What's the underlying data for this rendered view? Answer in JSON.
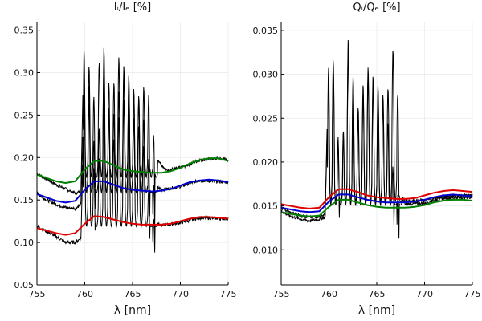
{
  "chart_data": [
    {
      "type": "line",
      "title": "Iᵢ/Iₑ [%]",
      "xlabel": "λ [nm]",
      "ylabel": "",
      "xlim": [
        755,
        775
      ],
      "ylim": [
        0.05,
        0.36
      ],
      "xticks": [
        "755",
        "760",
        "765",
        "770",
        "775"
      ],
      "yticks": [
        "0.05",
        "0.10",
        "0.15",
        "0.20",
        "0.25",
        "0.30",
        "0.35"
      ],
      "grid": true,
      "legend": "none",
      "series": [
        {
          "color": "#000000",
          "style": "noisy-absorption",
          "x": [
            755,
            756,
            757,
            758,
            759,
            759.6,
            759.9,
            760.2,
            760.8,
            761.2,
            761.6,
            762.5,
            763.5,
            764.5,
            765.5,
            766.5,
            767.5,
            768.5,
            770,
            772,
            774,
            775
          ],
          "y": [
            0.181,
            0.175,
            0.168,
            0.163,
            0.158,
            0.16,
            0.33,
            0.3,
            0.32,
            0.2,
            0.35,
            0.25,
            0.32,
            0.3,
            0.27,
            0.29,
            0.2,
            0.185,
            0.188,
            0.197,
            0.199,
            0.197
          ]
        },
        {
          "color": "#000000",
          "style": "noisy-absorption",
          "x": [
            755,
            756,
            757,
            758,
            759,
            759.6,
            760,
            760.6,
            761.2,
            762,
            763,
            764,
            765,
            766,
            767,
            768,
            770,
            772,
            775
          ],
          "y": [
            0.158,
            0.15,
            0.145,
            0.141,
            0.14,
            0.145,
            0.3,
            0.28,
            0.18,
            0.33,
            0.25,
            0.3,
            0.28,
            0.26,
            0.17,
            0.162,
            0.166,
            0.173,
            0.171
          ]
        },
        {
          "color": "#000000",
          "style": "noisy-absorption",
          "x": [
            755,
            756,
            757,
            758,
            759,
            759.6,
            760,
            760.6,
            761.2,
            762,
            763,
            764,
            765,
            766,
            767,
            768,
            770,
            772,
            775
          ],
          "y": [
            0.119,
            0.113,
            0.107,
            0.1,
            0.1,
            0.105,
            0.28,
            0.26,
            0.14,
            0.3,
            0.22,
            0.27,
            0.25,
            0.23,
            0.13,
            0.12,
            0.123,
            0.129,
            0.128
          ]
        },
        {
          "color": "#008000",
          "x": [
            755,
            756,
            757,
            758,
            759,
            760,
            761,
            762,
            763,
            764,
            765,
            766,
            767,
            768,
            769,
            770,
            771,
            772,
            773,
            774,
            775
          ],
          "y": [
            0.18,
            0.176,
            0.172,
            0.17,
            0.172,
            0.186,
            0.196,
            0.196,
            0.191,
            0.186,
            0.184,
            0.183,
            0.182,
            0.182,
            0.184,
            0.188,
            0.193,
            0.197,
            0.199,
            0.199,
            0.196
          ]
        },
        {
          "color": "#0000cc",
          "x": [
            755,
            756,
            757,
            758,
            759,
            760,
            761,
            762,
            763,
            764,
            765,
            766,
            767,
            768,
            769,
            770,
            771,
            772,
            773,
            774,
            775
          ],
          "y": [
            0.157,
            0.153,
            0.149,
            0.147,
            0.149,
            0.162,
            0.172,
            0.172,
            0.168,
            0.164,
            0.162,
            0.161,
            0.16,
            0.161,
            0.163,
            0.167,
            0.171,
            0.173,
            0.174,
            0.173,
            0.171
          ]
        },
        {
          "color": "#e00000",
          "x": [
            755,
            756,
            757,
            758,
            759,
            760,
            761,
            762,
            763,
            764,
            765,
            766,
            767,
            768,
            769,
            770,
            771,
            772,
            773,
            774,
            775
          ],
          "y": [
            0.117,
            0.114,
            0.111,
            0.109,
            0.111,
            0.122,
            0.131,
            0.13,
            0.127,
            0.124,
            0.122,
            0.121,
            0.121,
            0.121,
            0.122,
            0.125,
            0.128,
            0.13,
            0.13,
            0.129,
            0.128
          ]
        }
      ]
    },
    {
      "type": "line",
      "title": "Qᵢ/Qₑ [%]",
      "xlabel": "λ [nm]",
      "ylabel": "",
      "xlim": [
        755,
        775
      ],
      "ylim": [
        0.006,
        0.036
      ],
      "xticks": [
        "755",
        "760",
        "765",
        "770",
        "775"
      ],
      "yticks": [
        "0.010",
        "0.015",
        "0.020",
        "0.025",
        "0.030",
        "0.035"
      ],
      "grid": true,
      "legend": "none",
      "series": [
        {
          "color": "#000000",
          "style": "noisy-absorption",
          "x": [
            755,
            756,
            757,
            758,
            759,
            759.6,
            760,
            760.6,
            761.2,
            762,
            763,
            764,
            765,
            766,
            767,
            767.5,
            768,
            770,
            772,
            775
          ],
          "y": [
            0.0148,
            0.0142,
            0.0139,
            0.0137,
            0.0138,
            0.014,
            0.0335,
            0.031,
            0.0175,
            0.034,
            0.026,
            0.031,
            0.029,
            0.027,
            0.0355,
            0.016,
            0.0152,
            0.0153,
            0.0159,
            0.016
          ]
        },
        {
          "color": "#000000",
          "style": "noisy-absorption",
          "x": [
            755,
            756,
            757,
            758,
            759,
            759.6,
            760,
            760.6,
            761.2,
            762,
            763,
            764,
            765,
            766,
            767,
            768,
            770,
            772,
            775
          ],
          "y": [
            0.0144,
            0.0138,
            0.0135,
            0.0133,
            0.0135,
            0.0137,
            0.032,
            0.03,
            0.017,
            0.033,
            0.025,
            0.03,
            0.028,
            0.026,
            0.0165,
            0.0156,
            0.0156,
            0.0161,
            0.0162
          ]
        },
        {
          "color": "#008000",
          "x": [
            755,
            756,
            757,
            758,
            759,
            760,
            761,
            762,
            763,
            764,
            765,
            766,
            767,
            768,
            769,
            770,
            771,
            772,
            773,
            774,
            775
          ],
          "y": [
            0.0143,
            0.0141,
            0.0139,
            0.0138,
            0.0139,
            0.0149,
            0.0157,
            0.0157,
            0.0154,
            0.0151,
            0.0149,
            0.0148,
            0.0148,
            0.0148,
            0.0149,
            0.0151,
            0.0154,
            0.0156,
            0.0157,
            0.0157,
            0.0156
          ]
        },
        {
          "color": "#0000cc",
          "x": [
            755,
            756,
            757,
            758,
            759,
            760,
            761,
            762,
            763,
            764,
            765,
            766,
            767,
            768,
            769,
            770,
            771,
            772,
            773,
            774,
            775
          ],
          "y": [
            0.0148,
            0.0146,
            0.0144,
            0.0143,
            0.0144,
            0.0155,
            0.0163,
            0.0163,
            0.016,
            0.0157,
            0.0155,
            0.0154,
            0.0154,
            0.0154,
            0.0155,
            0.0157,
            0.016,
            0.0162,
            0.0163,
            0.0162,
            0.0161
          ]
        },
        {
          "color": "#e00000",
          "x": [
            755,
            756,
            757,
            758,
            759,
            760,
            761,
            762,
            763,
            764,
            765,
            766,
            767,
            768,
            769,
            770,
            771,
            772,
            773,
            774,
            775
          ],
          "y": [
            0.0152,
            0.015,
            0.0148,
            0.0147,
            0.0148,
            0.016,
            0.0169,
            0.0169,
            0.0166,
            0.0162,
            0.016,
            0.0159,
            0.0158,
            0.0158,
            0.0159,
            0.0162,
            0.0165,
            0.0167,
            0.0168,
            0.0167,
            0.0166
          ]
        }
      ]
    }
  ]
}
